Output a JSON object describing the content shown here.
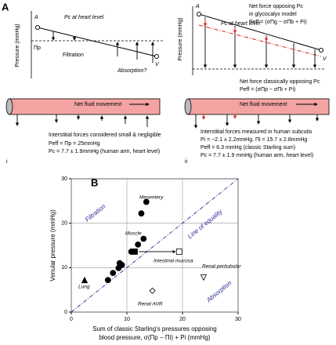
{
  "panel_a": {
    "label": "A",
    "left": {
      "y_label": "Pressure (mmHg)",
      "arteriole": "A",
      "venule": "V",
      "pc_label": "Pc at heart level",
      "pi_label": "Πp",
      "filtration": "Filtration",
      "absorption": "Absorption?",
      "tube_label": "Net fluid movement",
      "notes": [
        "Interstitial forces considered small & negligible",
        "Peff = Πp = 25mmHg",
        "Pc = 7.7 ± 1.9mmHg (human arm, heart level)"
      ],
      "index": "i"
    },
    "right": {
      "y_label": "Pressure (mmHg)",
      "arteriole": "A",
      "venule": "V",
      "pc_label": "Pc at heart level",
      "glyco_label": [
        "Net force opposing Pc",
        "in glycocalyx model",
        "Peff = (σΠg − σΠb + Pi)"
      ],
      "classic_label": [
        "Net force classically opposing Pc",
        "Peff = (σΠp − σΠi + Pi)"
      ],
      "tube_label": "Net fluid movement",
      "notes": [
        "Interstitial forces measured in human subcutis",
        "Pi = −2.1 ± 2.2mmHg.   Πi = 15.7 ± 2.8mmHg",
        "Peff = 6.3 mmHg (classic Starling sum)",
        "Pc = 7.7 ± 1.9 mmHg (human arm, heart level)"
      ],
      "index": "ii"
    }
  },
  "chart_data": {
    "type": "scatter",
    "panel_label": "B",
    "y_label": "Venular pressure (mmHg)",
    "x_label": [
      "Sum of classic Starling's pressures opposing",
      "blood pressure, σ(Πp − Πi) + Pi (mmHg)"
    ],
    "xlim": [
      0,
      30
    ],
    "ylim": [
      0,
      30
    ],
    "xticks": [
      0,
      10,
      20,
      30
    ],
    "yticks": [
      0,
      10,
      20,
      30
    ],
    "grid": true,
    "regions": [
      "Filtration",
      "Absorption"
    ],
    "diagonal_label": "Line of equality",
    "annotations": [
      "Mesentery",
      "Muscle",
      "Intestinal mucosa",
      "Renal peritubular",
      "Renal AVR",
      "Lung"
    ],
    "series": [
      {
        "marker": "circle",
        "filled": true,
        "color": "#000000",
        "x": [
          13.5,
          12.6,
          13.0,
          12.0,
          10.8,
          8.7,
          8.5,
          9.1,
          7.5,
          6.6
        ],
        "values": [
          24.8,
          22.2,
          16.5,
          15.2,
          13.6,
          11.0,
          9.9,
          10.6,
          8.8,
          7.2
        ]
      },
      {
        "marker": "square",
        "filled": true,
        "color": "#000000",
        "x": [
          11.4
        ],
        "values": [
          13.6
        ]
      },
      {
        "marker": "square",
        "filled": false,
        "color": "#000000",
        "x": [
          19.4
        ],
        "values": [
          13.6
        ]
      },
      {
        "marker": "triangle-down",
        "filled": false,
        "color": "#000000",
        "x": [
          23.8
        ],
        "values": [
          7.8
        ]
      },
      {
        "marker": "diamond",
        "filled": false,
        "color": "#000000",
        "x": [
          14.6
        ],
        "values": [
          4.8
        ]
      },
      {
        "marker": "triangle-up",
        "filled": true,
        "color": "#000000",
        "x": [
          2.4
        ],
        "values": [
          7.2
        ]
      }
    ]
  }
}
